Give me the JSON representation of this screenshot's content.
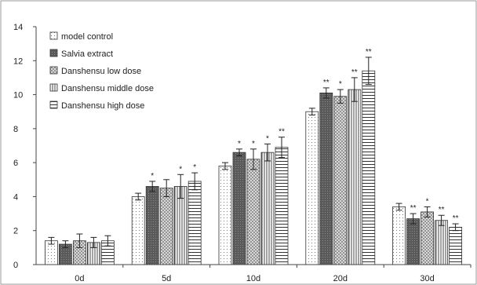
{
  "chart_data": {
    "type": "bar",
    "title": "",
    "xlabel": "",
    "ylabel": "",
    "ylim": [
      0,
      14
    ],
    "yticks": [
      0,
      2,
      4,
      6,
      8,
      10,
      12,
      14
    ],
    "grid": false,
    "legend_position": "top-left",
    "categories": [
      "0d",
      "5d",
      "10d",
      "20d",
      "30d"
    ],
    "series": [
      {
        "name": "model control",
        "pattern": "dots",
        "values": [
          1.4,
          4.0,
          5.8,
          9.0,
          3.4
        ],
        "errors": [
          0.2,
          0.2,
          0.2,
          0.2,
          0.2
        ],
        "significance": [
          "",
          "",
          "",
          "",
          ""
        ]
      },
      {
        "name": "Salvia extract",
        "pattern": "dark",
        "values": [
          1.2,
          4.6,
          6.6,
          10.1,
          2.7
        ],
        "errors": [
          0.2,
          0.3,
          0.2,
          0.3,
          0.3
        ],
        "significance": [
          "",
          "*",
          "*",
          "**",
          "**"
        ]
      },
      {
        "name": "Danshensu low dose",
        "pattern": "crosshatch",
        "values": [
          1.4,
          4.5,
          6.2,
          9.9,
          3.1
        ],
        "errors": [
          0.4,
          0.5,
          0.6,
          0.4,
          0.3
        ],
        "significance": [
          "",
          "",
          "*",
          "*",
          "*"
        ]
      },
      {
        "name": "Danshensu middle dose",
        "pattern": "vertical",
        "values": [
          1.3,
          4.6,
          6.6,
          10.3,
          2.6
        ],
        "errors": [
          0.3,
          0.7,
          0.5,
          0.7,
          0.3
        ],
        "significance": [
          "",
          "*",
          "*",
          "**",
          "**"
        ]
      },
      {
        "name": "Danshensu high dose",
        "pattern": "horizontal",
        "values": [
          1.4,
          4.9,
          6.9,
          11.4,
          2.2
        ],
        "errors": [
          0.3,
          0.5,
          0.6,
          0.8,
          0.2
        ],
        "significance": [
          "",
          "*",
          "**",
          "**",
          "**"
        ]
      }
    ]
  }
}
